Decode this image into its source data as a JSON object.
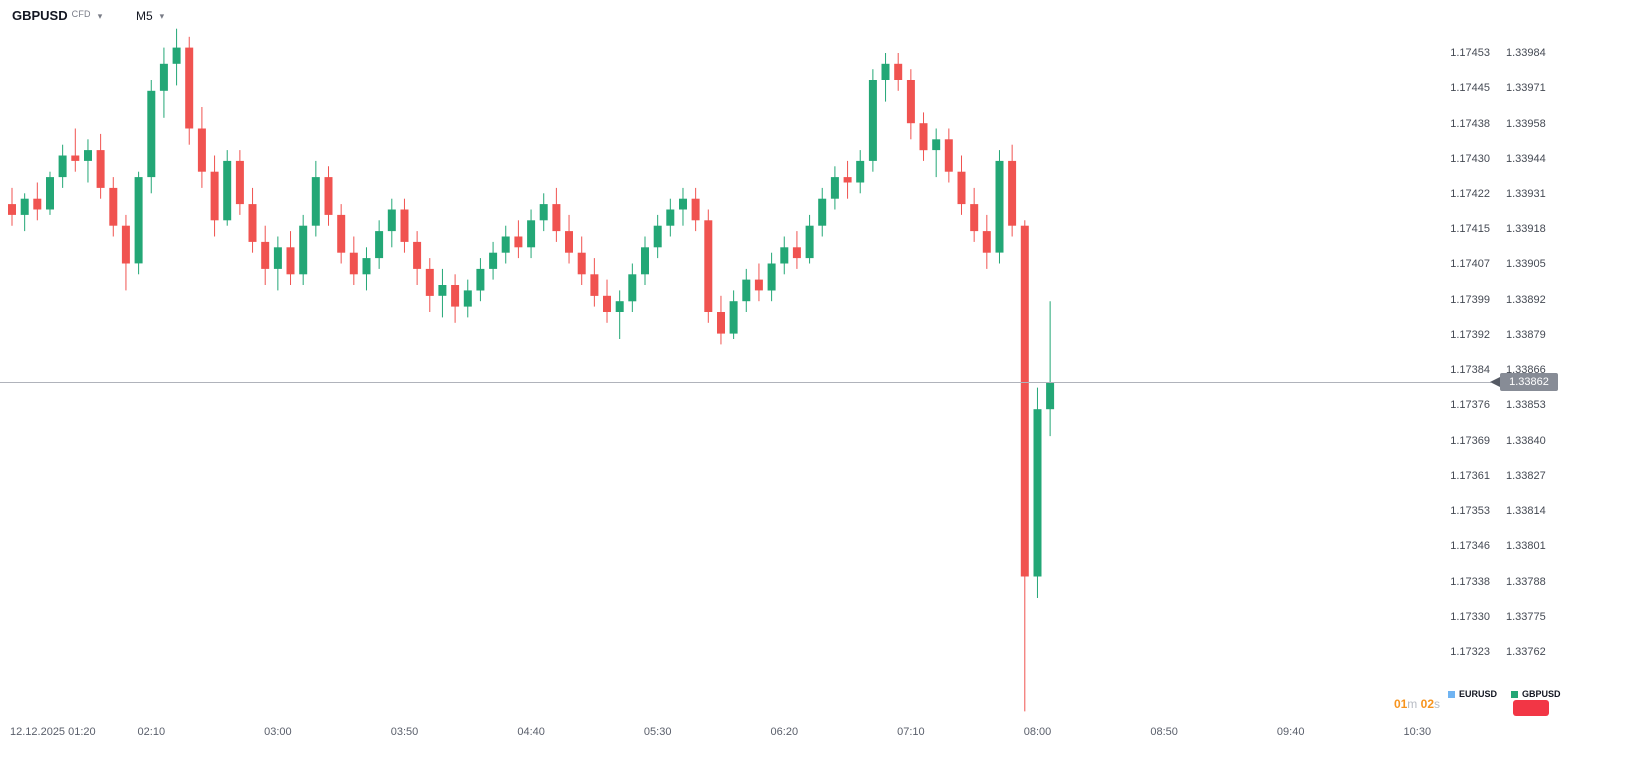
{
  "header": {
    "symbol": "GBPUSD",
    "instrument_type": "CFD",
    "timeframe": "M5"
  },
  "icons": {
    "caret": "▾"
  },
  "colors": {
    "up": "#23a776",
    "down": "#f05350",
    "price_line": "#b0b3bb",
    "tag_bg": "#878c96",
    "tag_arrow": "#555a64",
    "countdown_orange": "#f7941e",
    "axis_text": "#454a54",
    "badge_red": "#f23645",
    "eurusd_blue": "#70b4f2"
  },
  "price_tag": {
    "value": "1.33862"
  },
  "countdown": {
    "minutes": "01",
    "minutes_unit": "m",
    "seconds": "02",
    "seconds_unit": "s"
  },
  "legend": {
    "items": [
      {
        "label": "EURUSD",
        "color": "#70b4f2"
      },
      {
        "label": "GBPUSD",
        "color": "#23a776"
      }
    ]
  },
  "chart_data": {
    "type": "candlestick",
    "symbol": "GBPUSD",
    "instrument_type": "CFD",
    "timeframe": "M5",
    "date": "12.12.2025",
    "current_price": 1.33862,
    "ylim_gbpusd": [
      1.33762,
      1.33984
    ],
    "ylim_eurusd": [
      1.17323,
      1.17453
    ],
    "grid": false,
    "legend_position": "bottom-right",
    "price_axis_eurusd": [
      "1.17453",
      "1.17445",
      "1.17438",
      "1.17430",
      "1.17422",
      "1.17415",
      "1.17407",
      "1.17399",
      "1.17392",
      "1.17384",
      "1.17376",
      "1.17369",
      "1.17361",
      "1.17353",
      "1.17346",
      "1.17338",
      "1.17330",
      "1.17323"
    ],
    "price_axis_gbpusd": [
      "1.33984",
      "1.33971",
      "1.33958",
      "1.33944",
      "1.33931",
      "1.33918",
      "1.33905",
      "1.33892",
      "1.33879",
      "1.33866",
      "1.33853",
      "1.33840",
      "1.33827",
      "1.33814",
      "1.33801",
      "1.33788",
      "1.33775",
      "1.33762"
    ],
    "time_axis": [
      "12.12.2025 01:20",
      "02:10",
      "03:00",
      "03:50",
      "04:40",
      "05:30",
      "06:20",
      "07:10",
      "08:00",
      "08:50",
      "09:40",
      "10:30"
    ],
    "candles": [
      [
        "01:15",
        1.33928,
        1.33934,
        1.3392,
        1.33924
      ],
      [
        "01:20",
        1.33924,
        1.33932,
        1.33918,
        1.3393
      ],
      [
        "01:25",
        1.3393,
        1.33936,
        1.33922,
        1.33926
      ],
      [
        "01:30",
        1.33926,
        1.3394,
        1.33924,
        1.33938
      ],
      [
        "01:35",
        1.33938,
        1.3395,
        1.33934,
        1.33946
      ],
      [
        "01:40",
        1.33946,
        1.33956,
        1.3394,
        1.33944
      ],
      [
        "01:45",
        1.33944,
        1.33952,
        1.33936,
        1.33948
      ],
      [
        "01:50",
        1.33948,
        1.33954,
        1.3393,
        1.33934
      ],
      [
        "01:55",
        1.33934,
        1.33938,
        1.33916,
        1.3392
      ],
      [
        "02:00",
        1.3392,
        1.33924,
        1.33896,
        1.33906
      ],
      [
        "02:05",
        1.33906,
        1.3394,
        1.33902,
        1.33938
      ],
      [
        "02:10",
        1.33938,
        1.33974,
        1.33932,
        1.3397
      ],
      [
        "02:15",
        1.3397,
        1.33986,
        1.3396,
        1.3398
      ],
      [
        "02:20",
        1.3398,
        1.33993,
        1.33972,
        1.33986
      ],
      [
        "02:25",
        1.33986,
        1.3399,
        1.3395,
        1.33956
      ],
      [
        "02:30",
        1.33956,
        1.33964,
        1.33934,
        1.3394
      ],
      [
        "02:35",
        1.3394,
        1.33946,
        1.33916,
        1.33922
      ],
      [
        "02:40",
        1.33922,
        1.33948,
        1.3392,
        1.33944
      ],
      [
        "02:45",
        1.33944,
        1.33948,
        1.33924,
        1.33928
      ],
      [
        "02:50",
        1.33928,
        1.33934,
        1.3391,
        1.33914
      ],
      [
        "02:55",
        1.33914,
        1.3392,
        1.33898,
        1.33904
      ],
      [
        "03:00",
        1.33904,
        1.33916,
        1.33896,
        1.33912
      ],
      [
        "03:05",
        1.33912,
        1.33918,
        1.33898,
        1.33902
      ],
      [
        "03:10",
        1.33902,
        1.33924,
        1.33898,
        1.3392
      ],
      [
        "03:15",
        1.3392,
        1.33944,
        1.33916,
        1.33938
      ],
      [
        "03:20",
        1.33938,
        1.33942,
        1.3392,
        1.33924
      ],
      [
        "03:25",
        1.33924,
        1.33928,
        1.33906,
        1.3391
      ],
      [
        "03:30",
        1.3391,
        1.33916,
        1.33898,
        1.33902
      ],
      [
        "03:35",
        1.33902,
        1.33912,
        1.33896,
        1.33908
      ],
      [
        "03:40",
        1.33908,
        1.33922,
        1.33904,
        1.33918
      ],
      [
        "03:45",
        1.33918,
        1.3393,
        1.33912,
        1.33926
      ],
      [
        "03:50",
        1.33926,
        1.3393,
        1.3391,
        1.33914
      ],
      [
        "03:55",
        1.33914,
        1.33918,
        1.33898,
        1.33904
      ],
      [
        "04:00",
        1.33904,
        1.33908,
        1.33888,
        1.33894
      ],
      [
        "04:05",
        1.33894,
        1.33904,
        1.33886,
        1.33898
      ],
      [
        "04:10",
        1.33898,
        1.33902,
        1.33884,
        1.3389
      ],
      [
        "04:15",
        1.3389,
        1.339,
        1.33886,
        1.33896
      ],
      [
        "04:20",
        1.33896,
        1.33908,
        1.33892,
        1.33904
      ],
      [
        "04:25",
        1.33904,
        1.33914,
        1.339,
        1.3391
      ],
      [
        "04:30",
        1.3391,
        1.3392,
        1.33906,
        1.33916
      ],
      [
        "04:35",
        1.33916,
        1.33922,
        1.33908,
        1.33912
      ],
      [
        "04:40",
        1.33912,
        1.33926,
        1.33908,
        1.33922
      ],
      [
        "04:45",
        1.33922,
        1.33932,
        1.33918,
        1.33928
      ],
      [
        "04:50",
        1.33928,
        1.33934,
        1.33914,
        1.33918
      ],
      [
        "04:55",
        1.33918,
        1.33924,
        1.33906,
        1.3391
      ],
      [
        "05:00",
        1.3391,
        1.33916,
        1.33898,
        1.33902
      ],
      [
        "05:05",
        1.33902,
        1.33908,
        1.3389,
        1.33894
      ],
      [
        "05:10",
        1.33894,
        1.339,
        1.33884,
        1.33888
      ],
      [
        "05:15",
        1.33888,
        1.33896,
        1.33878,
        1.33892
      ],
      [
        "05:20",
        1.33892,
        1.33906,
        1.33888,
        1.33902
      ],
      [
        "05:25",
        1.33902,
        1.33916,
        1.33898,
        1.33912
      ],
      [
        "05:30",
        1.33912,
        1.33924,
        1.33908,
        1.3392
      ],
      [
        "05:35",
        1.3392,
        1.3393,
        1.33916,
        1.33926
      ],
      [
        "05:40",
        1.33926,
        1.33934,
        1.3392,
        1.3393
      ],
      [
        "05:45",
        1.3393,
        1.33934,
        1.33918,
        1.33922
      ],
      [
        "05:50",
        1.33922,
        1.33926,
        1.33884,
        1.33888
      ],
      [
        "05:55",
        1.33888,
        1.33894,
        1.33876,
        1.3388
      ],
      [
        "06:00",
        1.3388,
        1.33896,
        1.33878,
        1.33892
      ],
      [
        "06:05",
        1.33892,
        1.33904,
        1.33888,
        1.339
      ],
      [
        "06:10",
        1.339,
        1.33906,
        1.33892,
        1.33896
      ],
      [
        "06:15",
        1.33896,
        1.3391,
        1.33892,
        1.33906
      ],
      [
        "06:20",
        1.33906,
        1.33916,
        1.33902,
        1.33912
      ],
      [
        "06:25",
        1.33912,
        1.33918,
        1.33904,
        1.33908
      ],
      [
        "06:30",
        1.33908,
        1.33924,
        1.33906,
        1.3392
      ],
      [
        "06:35",
        1.3392,
        1.33934,
        1.33916,
        1.3393
      ],
      [
        "06:40",
        1.3393,
        1.33942,
        1.33926,
        1.33938
      ],
      [
        "06:45",
        1.33938,
        1.33944,
        1.3393,
        1.33936
      ],
      [
        "06:50",
        1.33936,
        1.33948,
        1.33932,
        1.33944
      ],
      [
        "06:55",
        1.33944,
        1.33978,
        1.3394,
        1.33974
      ],
      [
        "07:00",
        1.33974,
        1.33984,
        1.33966,
        1.3398
      ],
      [
        "07:05",
        1.3398,
        1.33984,
        1.3397,
        1.33974
      ],
      [
        "07:10",
        1.33974,
        1.33978,
        1.33952,
        1.33958
      ],
      [
        "07:15",
        1.33958,
        1.33962,
        1.33944,
        1.33948
      ],
      [
        "07:20",
        1.33948,
        1.33956,
        1.33938,
        1.33952
      ],
      [
        "07:25",
        1.33952,
        1.33956,
        1.33936,
        1.3394
      ],
      [
        "07:30",
        1.3394,
        1.33946,
        1.33924,
        1.33928
      ],
      [
        "07:35",
        1.33928,
        1.33934,
        1.33914,
        1.33918
      ],
      [
        "07:40",
        1.33918,
        1.33924,
        1.33904,
        1.3391
      ],
      [
        "07:45",
        1.3391,
        1.33948,
        1.33906,
        1.33944
      ],
      [
        "07:50",
        1.33944,
        1.3395,
        1.33916,
        1.3392
      ],
      [
        "07:55",
        1.3392,
        1.33922,
        1.3374,
        1.3379
      ],
      [
        "08:00",
        1.3379,
        1.3386,
        1.33782,
        1.33852
      ],
      [
        "08:05",
        1.33852,
        1.33892,
        1.33842,
        1.33862
      ]
    ]
  }
}
